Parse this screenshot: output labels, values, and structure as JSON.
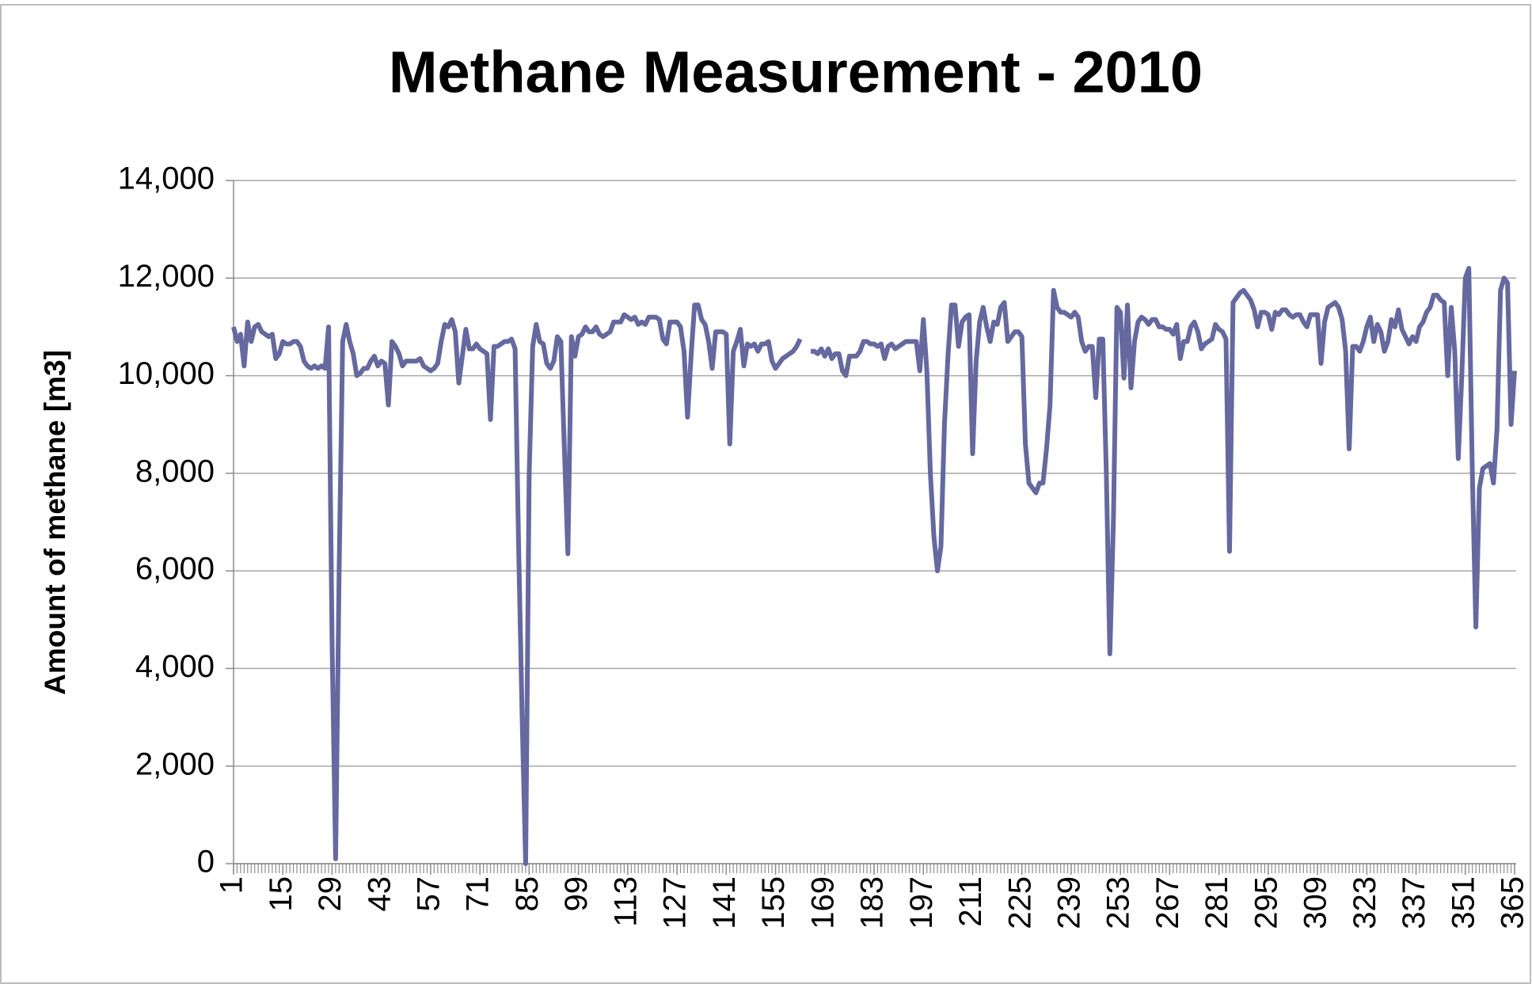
{
  "chart_data": {
    "type": "line",
    "title": "Methane Measurement - 2010",
    "ylabel": "Amount of methane [m3]",
    "color": "#65699f",
    "grid": true,
    "xlim": [
      1,
      365
    ],
    "ylim": [
      0,
      14000
    ],
    "xticks": [
      1,
      15,
      29,
      43,
      57,
      71,
      85,
      99,
      113,
      127,
      141,
      155,
      169,
      183,
      197,
      211,
      225,
      239,
      253,
      267,
      281,
      295,
      309,
      323,
      337,
      351,
      365
    ],
    "yticks": [
      0,
      {
        "value": 2000,
        "label": "2,000"
      },
      {
        "value": 4000,
        "label": "4,000"
      },
      {
        "value": 6000,
        "label": "6,000"
      },
      {
        "value": 8000,
        "label": "8,000"
      },
      {
        "value": 10000,
        "label": "10,000"
      },
      {
        "value": 12000,
        "label": "12,000"
      },
      {
        "value": 14000,
        "label": "14,000"
      }
    ],
    "x": [
      1,
      2,
      3,
      4,
      5,
      6,
      7,
      8,
      9,
      10,
      11,
      12,
      13,
      14,
      15,
      16,
      17,
      18,
      19,
      20,
      21,
      22,
      23,
      24,
      25,
      26,
      27,
      28,
      29,
      30,
      31,
      32,
      33,
      34,
      35,
      36,
      37,
      38,
      39,
      40,
      41,
      42,
      43,
      44,
      45,
      46,
      47,
      48,
      49,
      50,
      51,
      52,
      53,
      54,
      55,
      56,
      57,
      58,
      59,
      60,
      61,
      62,
      63,
      64,
      65,
      66,
      67,
      68,
      69,
      70,
      71,
      72,
      73,
      74,
      75,
      76,
      77,
      78,
      79,
      80,
      81,
      82,
      83,
      84,
      85,
      86,
      87,
      88,
      89,
      90,
      91,
      92,
      93,
      94,
      95,
      96,
      97,
      98,
      99,
      100,
      101,
      102,
      103,
      104,
      105,
      106,
      107,
      108,
      109,
      110,
      111,
      112,
      113,
      114,
      115,
      116,
      117,
      118,
      119,
      120,
      121,
      122,
      123,
      124,
      125,
      126,
      127,
      128,
      129,
      130,
      131,
      132,
      133,
      134,
      135,
      136,
      137,
      138,
      139,
      140,
      141,
      142,
      143,
      144,
      145,
      146,
      147,
      148,
      149,
      150,
      151,
      152,
      153,
      154,
      155,
      156,
      157,
      158,
      159,
      160,
      161,
      162,
      163,
      164,
      165,
      166,
      167,
      168,
      169,
      170,
      171,
      172,
      173,
      174,
      175,
      176,
      177,
      178,
      179,
      180,
      181,
      182,
      183,
      184,
      185,
      186,
      187,
      188,
      189,
      190,
      191,
      192,
      193,
      194,
      195,
      196,
      197,
      198,
      199,
      200,
      201,
      202,
      203,
      204,
      205,
      206,
      207,
      208,
      209,
      210,
      211,
      212,
      213,
      214,
      215,
      216,
      217,
      218,
      219,
      220,
      221,
      222,
      223,
      224,
      225,
      226,
      227,
      228,
      229,
      230,
      231,
      232,
      233,
      234,
      235,
      236,
      237,
      238,
      239,
      240,
      241,
      242,
      243,
      244,
      245,
      246,
      247,
      248,
      249,
      250,
      251,
      252,
      253,
      254,
      255,
      256,
      257,
      258,
      259,
      260,
      261,
      262,
      263,
      264,
      265,
      266,
      267,
      268,
      269,
      270,
      271,
      272,
      273,
      274,
      275,
      276,
      277,
      278,
      279,
      280,
      281,
      282,
      283,
      284,
      285,
      286,
      287,
      288,
      289,
      290,
      291,
      292,
      293,
      294,
      295,
      296,
      297,
      298,
      299,
      300,
      301,
      302,
      303,
      304,
      305,
      306,
      307,
      308,
      309,
      310,
      311,
      312,
      313,
      314,
      315,
      316,
      317,
      318,
      319,
      320,
      321,
      322,
      323,
      324,
      325,
      326,
      327,
      328,
      329,
      330,
      331,
      332,
      333,
      334,
      335,
      336,
      337,
      338,
      339,
      340,
      341,
      342,
      343,
      344,
      345,
      346,
      347,
      348,
      349,
      350,
      351,
      352,
      353,
      354,
      355,
      356,
      357,
      358,
      359,
      360,
      361,
      362,
      363,
      364,
      365
    ],
    "values": [
      11000,
      10700,
      10850,
      10200,
      11100,
      10700,
      11000,
      11050,
      10900,
      10850,
      10800,
      10850,
      10350,
      10450,
      10700,
      10650,
      10650,
      10700,
      10700,
      10600,
      10300,
      10200,
      10150,
      10200,
      10150,
      10200,
      10150,
      11000,
      4500,
      100,
      6000,
      10700,
      11050,
      10700,
      10450,
      10000,
      10050,
      10150,
      10150,
      10300,
      10400,
      10200,
      10300,
      10250,
      9400,
      10700,
      10600,
      10450,
      10200,
      10300,
      10300,
      10300,
      10300,
      10350,
      10200,
      10150,
      10100,
      10150,
      10250,
      10700,
      11050,
      11000,
      11150,
      10900,
      9850,
      10400,
      10950,
      10550,
      10550,
      10650,
      10550,
      10500,
      10450,
      9100,
      10600,
      10600,
      10650,
      10700,
      10700,
      10750,
      10550,
      6500,
      3000,
      0,
      8000,
      10600,
      11050,
      10700,
      10650,
      10250,
      10150,
      10300,
      10800,
      10700,
      8500,
      6350,
      10800,
      10400,
      10800,
      10850,
      11000,
      10900,
      10900,
      11000,
      10850,
      10800,
      10850,
      10900,
      11100,
      11100,
      11100,
      11250,
      11200,
      11150,
      11200,
      11050,
      11100,
      11050,
      11200,
      11200,
      11200,
      11150,
      10750,
      10650,
      11100,
      11100,
      11100,
      11000,
      10500,
      9150,
      10400,
      11450,
      11450,
      11150,
      11050,
      10700,
      10150,
      10900,
      10900,
      10900,
      10850,
      8600,
      10500,
      10700,
      10950,
      10200,
      10650,
      10600,
      10650,
      10500,
      10650,
      10650,
      10700,
      10300,
      10150,
      10250,
      10350,
      10400,
      10450,
      10500,
      10600,
      10750,
      null,
      null,
      10500,
      10500,
      10450,
      10550,
      10400,
      10550,
      10350,
      10450,
      10450,
      10100,
      10000,
      10400,
      10400,
      10400,
      10500,
      10700,
      10700,
      10650,
      10650,
      10600,
      10650,
      10350,
      10600,
      10650,
      10550,
      10600,
      10650,
      10700,
      10700,
      10700,
      10700,
      10100,
      11150,
      10100,
      8000,
      6700,
      6000,
      6500,
      9000,
      10400,
      11450,
      11450,
      10600,
      11100,
      11200,
      11250,
      8400,
      10300,
      11100,
      11400,
      11000,
      10700,
      11100,
      11050,
      11400,
      11500,
      10700,
      10800,
      10900,
      10900,
      10800,
      8600,
      7800,
      7700,
      7600,
      7800,
      7800,
      8500,
      9400,
      11750,
      11400,
      11300,
      11300,
      11250,
      11200,
      11300,
      11200,
      10700,
      10500,
      10600,
      10600,
      9550,
      10750,
      10750,
      8000,
      4300,
      7000,
      11400,
      11300,
      9950,
      11450,
      9750,
      10700,
      11100,
      11200,
      11150,
      11050,
      11150,
      11150,
      11000,
      11000,
      10950,
      10950,
      10850,
      11050,
      10350,
      10700,
      10700,
      11000,
      11100,
      10900,
      10550,
      10650,
      10700,
      10750,
      11050,
      10950,
      10900,
      10750,
      6400,
      11500,
      11600,
      11700,
      11750,
      11650,
      11550,
      11350,
      11000,
      11300,
      11300,
      11250,
      10950,
      11300,
      11250,
      11350,
      11350,
      11250,
      11200,
      11250,
      11250,
      11100,
      11000,
      11250,
      11250,
      11250,
      10250,
      11100,
      11400,
      11450,
      11500,
      11400,
      11150,
      10500,
      8500,
      10600,
      10600,
      10500,
      10700,
      11000,
      11200,
      10700,
      11050,
      10900,
      10500,
      10700,
      11150,
      11000,
      11350,
      10950,
      10800,
      10650,
      10800,
      10700,
      11000,
      11100,
      11300,
      11400,
      11650,
      11650,
      11550,
      11500,
      10000,
      11400,
      10500,
      8300,
      10000,
      12000,
      12200,
      8000,
      4850,
      7700,
      8100,
      8150,
      8200,
      7800,
      8900,
      11750,
      12000,
      11900,
      9000,
      10100
    ]
  }
}
